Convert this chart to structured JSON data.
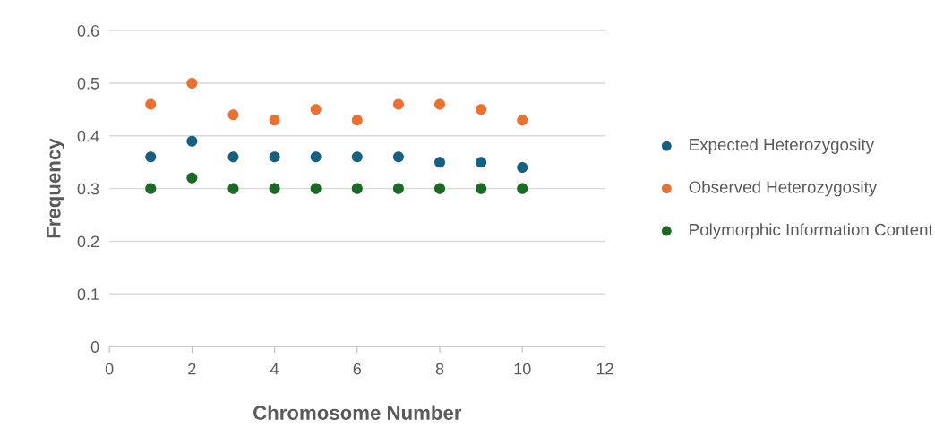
{
  "chart_data": {
    "type": "scatter",
    "xlabel": "Chromosome Number",
    "ylabel": "Frequency",
    "x": [
      1,
      2,
      3,
      4,
      5,
      6,
      7,
      8,
      9,
      10
    ],
    "series": [
      {
        "name": "Expected Heterozygosity",
        "color": "#156082",
        "values": [
          0.36,
          0.39,
          0.36,
          0.36,
          0.36,
          0.36,
          0.36,
          0.35,
          0.35,
          0.34
        ]
      },
      {
        "name": "Observed Heterozygosity",
        "color": "#e97132",
        "values": [
          0.46,
          0.5,
          0.44,
          0.43,
          0.45,
          0.43,
          0.46,
          0.46,
          0.45,
          0.43
        ]
      },
      {
        "name": "Polymorphic Information Content",
        "color": "#196b24",
        "values": [
          0.3,
          0.32,
          0.3,
          0.3,
          0.3,
          0.3,
          0.3,
          0.3,
          0.3,
          0.3
        ]
      }
    ],
    "xlim": [
      0,
      12
    ],
    "xticks": [
      0,
      2,
      4,
      6,
      8,
      10,
      12
    ],
    "ylim": [
      0,
      0.6
    ],
    "yticks": [
      0,
      0.1,
      0.2,
      0.3,
      0.4,
      0.5,
      0.6
    ],
    "grid": "y",
    "legend": "right",
    "marker": "circle"
  }
}
